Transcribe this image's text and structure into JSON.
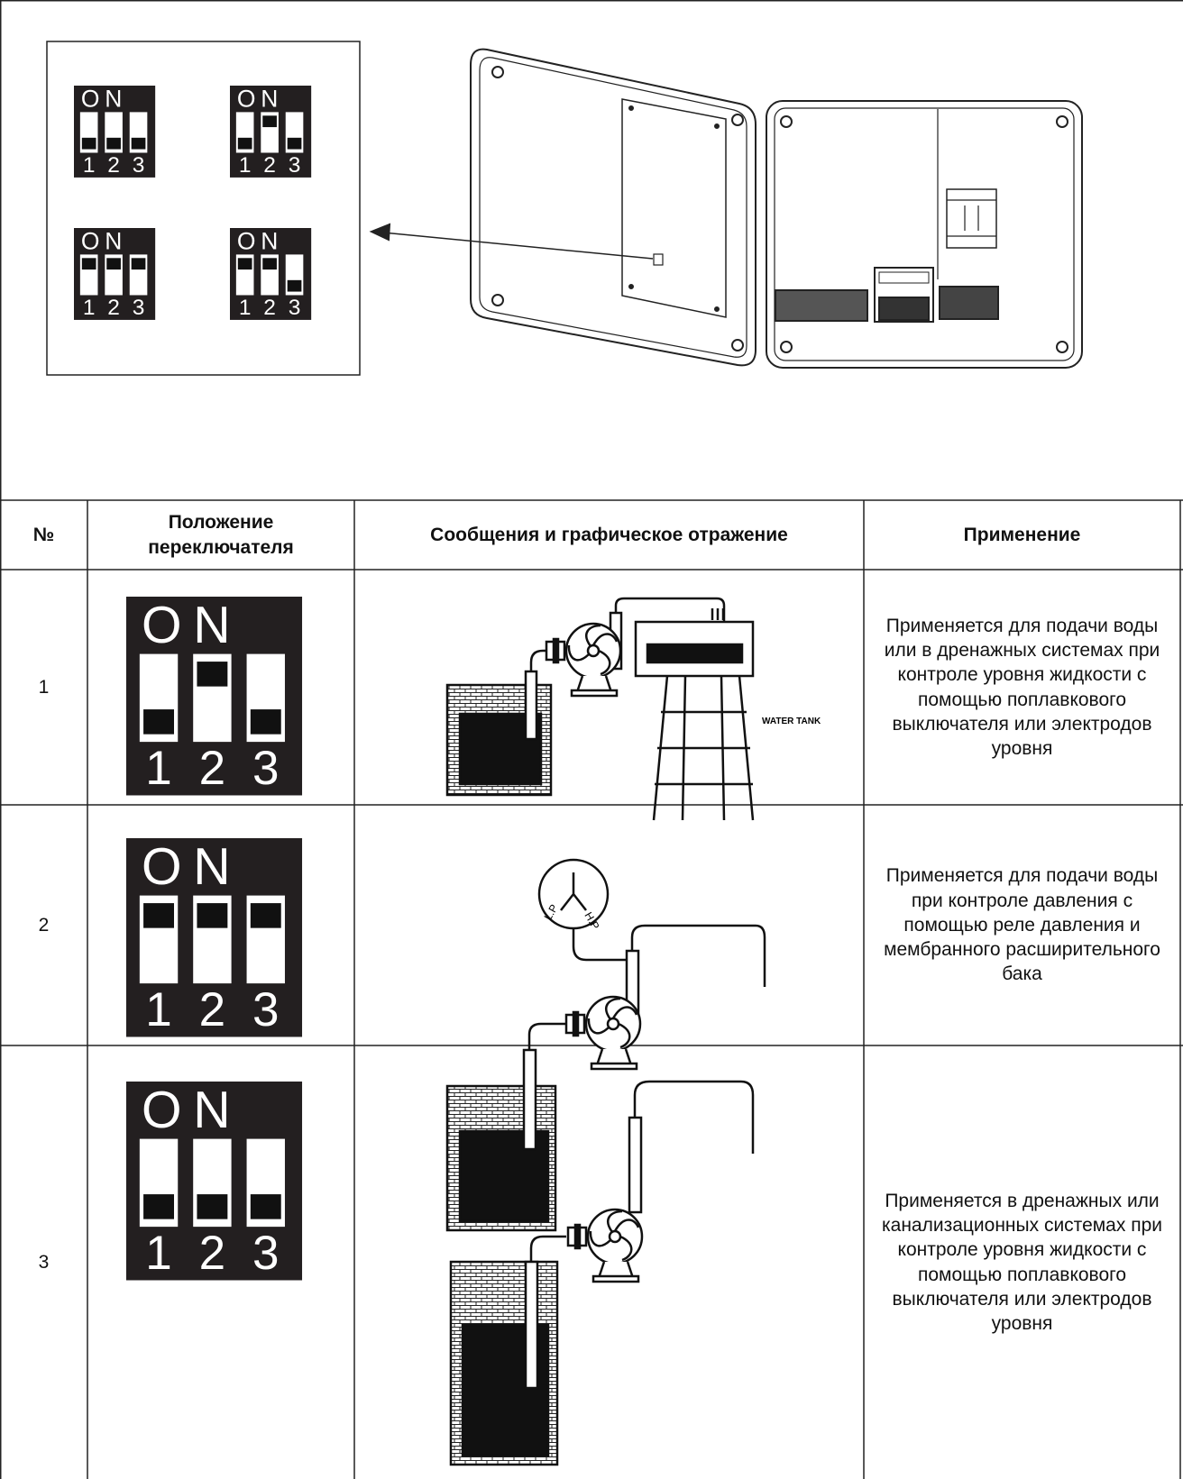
{
  "dip": {
    "on": "ON",
    "numbers": [
      "1",
      "2",
      "3"
    ]
  },
  "inset": {
    "switches": [
      [
        false,
        false,
        false
      ],
      [
        false,
        true,
        false
      ],
      [
        true,
        true,
        true
      ],
      [
        true,
        true,
        false
      ]
    ]
  },
  "labels": {
    "water_tank": "WATER TANK",
    "lp": "L.P",
    "hp": "H.P"
  },
  "table": {
    "header": [
      "№",
      "Положение переключателя",
      "Сообщения и графическое отражение",
      "Применение"
    ],
    "rows": [
      {
        "number": "1",
        "switch": [
          false,
          true,
          false
        ],
        "application": "Применяется для подачи воды или в дренажных системах при контроле уровня жидкости с помощью поплавкового выключателя или электродов уровня"
      },
      {
        "number": "2",
        "switch": [
          true,
          true,
          true
        ],
        "application": "Применяется для подачи воды при контроле давления с помощью реле давления и мембранного расширительного бака"
      },
      {
        "number": "3",
        "switch": [
          false,
          false,
          false
        ],
        "application": "Применяется в дренажных или канализационных системах при контроле уровня жидкости с помощью поплавкового выключателя или электродов уровня"
      }
    ]
  }
}
